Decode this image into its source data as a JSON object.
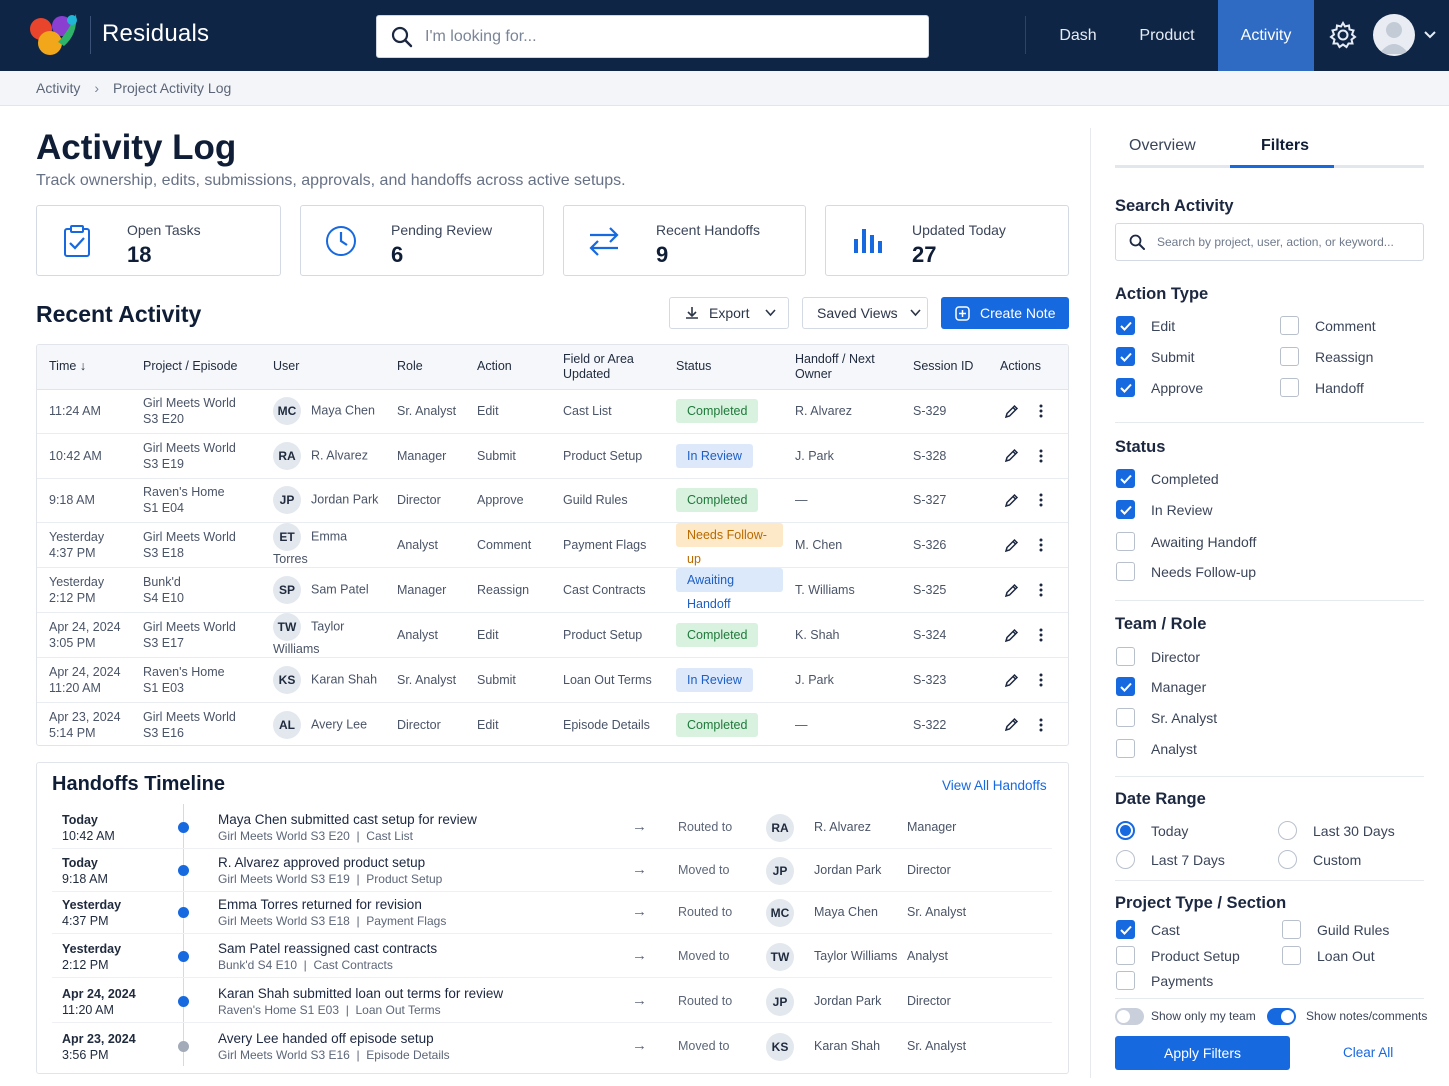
{
  "header": {
    "brand": "Residuals",
    "search_placeholder": "I'm looking for...",
    "nav": [
      "Dash",
      "Product",
      "Activity"
    ],
    "active_nav": "Activity"
  },
  "breadcrumb": [
    "Activity",
    "Project Activity Log"
  ],
  "page": {
    "title": "Activity Log",
    "subtitle": "Track ownership, edits, submissions, approvals, and handoffs across active setups."
  },
  "stats": [
    {
      "label": "Open Tasks",
      "value": "18",
      "icon": "clipboard-check-icon"
    },
    {
      "label": "Pending Review",
      "value": "6",
      "icon": "clock-icon"
    },
    {
      "label": "Recent Handoffs",
      "value": "9",
      "icon": "swap-arrows-icon"
    },
    {
      "label": "Updated Today",
      "value": "27",
      "icon": "bar-chart-icon"
    }
  ],
  "recent": {
    "title": "Recent Activity",
    "export_label": "Export",
    "saved_views_label": "Saved Views",
    "create_note_label": "Create Note",
    "columns": [
      "Time",
      "Project / Episode",
      "User",
      "Role",
      "Action",
      "Field or Area Updated",
      "Status",
      "Handoff / Next Owner",
      "Session ID",
      "Actions"
    ],
    "rows": [
      {
        "time1": "11:24 AM",
        "time2": "",
        "proj1": "Girl Meets World",
        "proj2": "S3 E20",
        "initials": "MC",
        "user": "Maya Chen",
        "role": "Sr. Analyst",
        "action": "Edit",
        "field": "Cast List",
        "status": "Completed",
        "next": "R. Alvarez",
        "session": "S-329"
      },
      {
        "time1": "10:42 AM",
        "time2": "",
        "proj1": "Girl Meets World",
        "proj2": "S3 E19",
        "initials": "RA",
        "user": "R. Alvarez",
        "role": "Manager",
        "action": "Submit",
        "field": "Product Setup",
        "status": "In Review",
        "next": "J. Park",
        "session": "S-328"
      },
      {
        "time1": "9:18 AM",
        "time2": "",
        "proj1": "Raven's Home",
        "proj2": "S1 E04",
        "initials": "JP",
        "user": "Jordan Park",
        "role": "Director",
        "action": "Approve",
        "field": "Guild Rules",
        "status": "Completed",
        "next": "—",
        "session": "S-327"
      },
      {
        "time1": "Yesterday",
        "time2": "4:37 PM",
        "proj1": "Girl Meets World",
        "proj2": "S3 E18",
        "initials": "ET",
        "user": "Emma Torres",
        "role": "Analyst",
        "action": "Comment",
        "field": "Payment Flags",
        "status": "Needs Follow-up",
        "next": "M. Chen",
        "session": "S-326"
      },
      {
        "time1": "Yesterday",
        "time2": "2:12 PM",
        "proj1": "Bunk'd",
        "proj2": "S4 E10",
        "initials": "SP",
        "user": "Sam Patel",
        "role": "Manager",
        "action": "Reassign",
        "field": "Cast Contracts",
        "status": "Awaiting Handoff",
        "next": "T. Williams",
        "session": "S-325"
      },
      {
        "time1": "Apr 24, 2024",
        "time2": "3:05 PM",
        "proj1": "Girl Meets World",
        "proj2": "S3 E17",
        "initials": "TW",
        "user": "Taylor Williams",
        "role": "Analyst",
        "action": "Edit",
        "field": "Product Setup",
        "status": "Completed",
        "next": "K. Shah",
        "session": "S-324"
      },
      {
        "time1": "Apr 24, 2024",
        "time2": "11:20 AM",
        "proj1": "Raven's Home",
        "proj2": "S1 E03",
        "initials": "KS",
        "user": "Karan Shah",
        "role": "Sr. Analyst",
        "action": "Submit",
        "field": "Loan Out Terms",
        "status": "In Review",
        "next": "J. Park",
        "session": "S-323"
      },
      {
        "time1": "Apr 23, 2024",
        "time2": "5:14 PM",
        "proj1": "Girl Meets World",
        "proj2": "S3 E16",
        "initials": "AL",
        "user": "Avery Lee",
        "role": "Director",
        "action": "Edit",
        "field": "Episode Details",
        "status": "Completed",
        "next": "—",
        "session": "S-322"
      }
    ]
  },
  "handoffs": {
    "title": "Handoffs Timeline",
    "view_all": "View All Handoffs",
    "items": [
      {
        "when1": "Today",
        "when2": "10:42 AM",
        "event": "Maya Chen submitted cast setup for review",
        "project": "Girl Meets World S3 E20",
        "area": "Cast List",
        "verb": "Routed to",
        "initials": "RA",
        "who": "R. Alvarez",
        "role": "Manager",
        "dot": "blue"
      },
      {
        "when1": "Today",
        "when2": "9:18 AM",
        "event": "R. Alvarez approved product setup",
        "project": "Girl Meets World S3 E19",
        "area": "Product Setup",
        "verb": "Moved to",
        "initials": "JP",
        "who": "Jordan Park",
        "role": "Director",
        "dot": "blue"
      },
      {
        "when1": "Yesterday",
        "when2": "4:37 PM",
        "event": "Emma Torres returned for revision",
        "project": "Girl Meets World S3 E18",
        "area": "Payment Flags",
        "verb": "Routed to",
        "initials": "MC",
        "who": "Maya Chen",
        "role": "Sr. Analyst",
        "dot": "blue"
      },
      {
        "when1": "Yesterday",
        "when2": "2:12 PM",
        "event": "Sam Patel reassigned cast contracts",
        "project": "Bunk'd S4 E10",
        "area": "Cast Contracts",
        "verb": "Moved to",
        "initials": "TW",
        "who": "Taylor Williams",
        "role": "Analyst",
        "dot": "blue"
      },
      {
        "when1": "Apr 24, 2024",
        "when2": "11:20 AM",
        "event": "Karan Shah submitted loan out terms for review",
        "project": "Raven's Home S1 E03",
        "area": "Loan Out Terms",
        "verb": "Routed to",
        "initials": "JP",
        "who": "Jordan Park",
        "role": "Director",
        "dot": "blue"
      },
      {
        "when1": "Apr 23, 2024",
        "when2": "3:56 PM",
        "event": "Avery Lee handed off episode setup",
        "project": "Girl Meets World S3 E16",
        "area": "Episode Details",
        "verb": "Moved to",
        "initials": "KS",
        "who": "Karan Shah",
        "role": "Sr. Analyst",
        "dot": "grey"
      }
    ]
  },
  "filters": {
    "tabs": [
      "Overview",
      "Filters"
    ],
    "active_tab": "Filters",
    "search_heading": "Search Activity",
    "search_placeholder": "Search by project, user, action, or keyword...",
    "action_type_heading": "Action Type",
    "action_types": [
      {
        "label": "Edit",
        "checked": true
      },
      {
        "label": "Comment",
        "checked": false
      },
      {
        "label": "Submit",
        "checked": true
      },
      {
        "label": "Reassign",
        "checked": false
      },
      {
        "label": "Approve",
        "checked": true
      },
      {
        "label": "Handoff",
        "checked": false
      }
    ],
    "status_heading": "Status",
    "statuses": [
      {
        "label": "Completed",
        "checked": true
      },
      {
        "label": "In Review",
        "checked": true
      },
      {
        "label": "Awaiting Handoff",
        "checked": false
      },
      {
        "label": "Needs Follow-up",
        "checked": false
      }
    ],
    "team_heading": "Team / Role",
    "teams": [
      {
        "label": "Director",
        "checked": false
      },
      {
        "label": "Manager",
        "checked": true
      },
      {
        "label": "Sr. Analyst",
        "checked": false
      },
      {
        "label": "Analyst",
        "checked": false
      }
    ],
    "date_heading": "Date Range",
    "dates": [
      {
        "label": "Today",
        "checked": true
      },
      {
        "label": "Last 30 Days",
        "checked": false
      },
      {
        "label": "Last 7 Days",
        "checked": false
      },
      {
        "label": "Custom",
        "checked": false
      }
    ],
    "project_heading": "Project Type / Section",
    "projects": [
      {
        "label": "Cast",
        "checked": true
      },
      {
        "label": "Guild Rules",
        "checked": false
      },
      {
        "label": "Product Setup",
        "checked": false
      },
      {
        "label": "Loan Out",
        "checked": false
      },
      {
        "label": "Payments",
        "checked": false
      }
    ],
    "toggle_team_label": "Show only my team",
    "toggle_team_on": false,
    "toggle_notes_label": "Show notes/comments",
    "toggle_notes_on": true,
    "apply_label": "Apply Filters",
    "clear_label": "Clear All"
  },
  "colors": {
    "accent": "#1769e0",
    "header_bg": "#0f2546",
    "completed": "#1f7a3b",
    "follow_up": "#b86a00"
  }
}
